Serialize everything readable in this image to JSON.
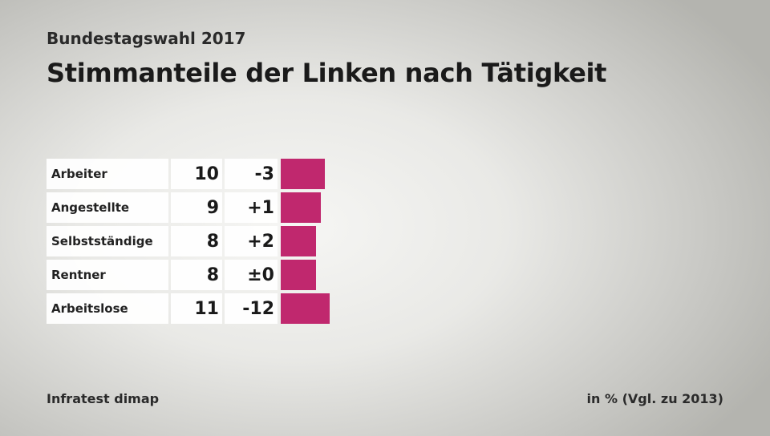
{
  "header": {
    "supertitle": "Bundestagswahl 2017",
    "title": "Stimmanteile der Linken nach Tätigkeit"
  },
  "footer": {
    "source": "Infratest dimap",
    "unit_note": "in % (Vgl. zu 2013)"
  },
  "colors": {
    "bar": "#c0286e"
  },
  "chart_data": {
    "type": "bar",
    "title": "Stimmanteile der Linken nach Tätigkeit",
    "categories": [
      "Arbeiter",
      "Angestellte",
      "Selbstständige",
      "Rentner",
      "Arbeitslose"
    ],
    "series": [
      {
        "values": [
          10,
          9,
          8,
          8,
          11
        ]
      }
    ],
    "changes": [
      "-3",
      "+1",
      "+2",
      "±0",
      "-12"
    ],
    "value_labels": [
      "10",
      "9",
      "8",
      "8",
      "11"
    ],
    "orientation": "horizontal"
  }
}
